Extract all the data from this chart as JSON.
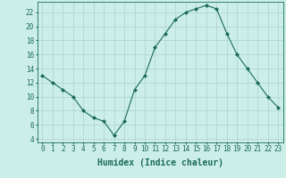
{
  "x": [
    0,
    1,
    2,
    3,
    4,
    5,
    6,
    7,
    8,
    9,
    10,
    11,
    12,
    13,
    14,
    15,
    16,
    17,
    18,
    19,
    20,
    21,
    22,
    23
  ],
  "y": [
    13,
    12,
    11,
    10,
    8,
    7,
    6.5,
    4.5,
    6.5,
    11,
    13,
    17,
    19,
    21,
    22,
    22.5,
    23,
    22.5,
    19,
    16,
    14,
    12,
    10,
    8.5
  ],
  "line_color": "#1a6b5a",
  "marker": "D",
  "marker_size": 2.0,
  "bg_color": "#cceee8",
  "grid_color": "#aad4cc",
  "xlabel": "Humidex (Indice chaleur)",
  "xlim": [
    -0.5,
    23.5
  ],
  "ylim": [
    3.5,
    23.5
  ],
  "yticks": [
    4,
    6,
    8,
    10,
    12,
    14,
    16,
    18,
    20,
    22
  ],
  "xticks": [
    0,
    1,
    2,
    3,
    4,
    5,
    6,
    7,
    8,
    9,
    10,
    11,
    12,
    13,
    14,
    15,
    16,
    17,
    18,
    19,
    20,
    21,
    22,
    23
  ],
  "tick_fontsize": 5.5,
  "xlabel_fontsize": 7.0,
  "axis_color": "#1a6b5a",
  "line_width": 0.8
}
